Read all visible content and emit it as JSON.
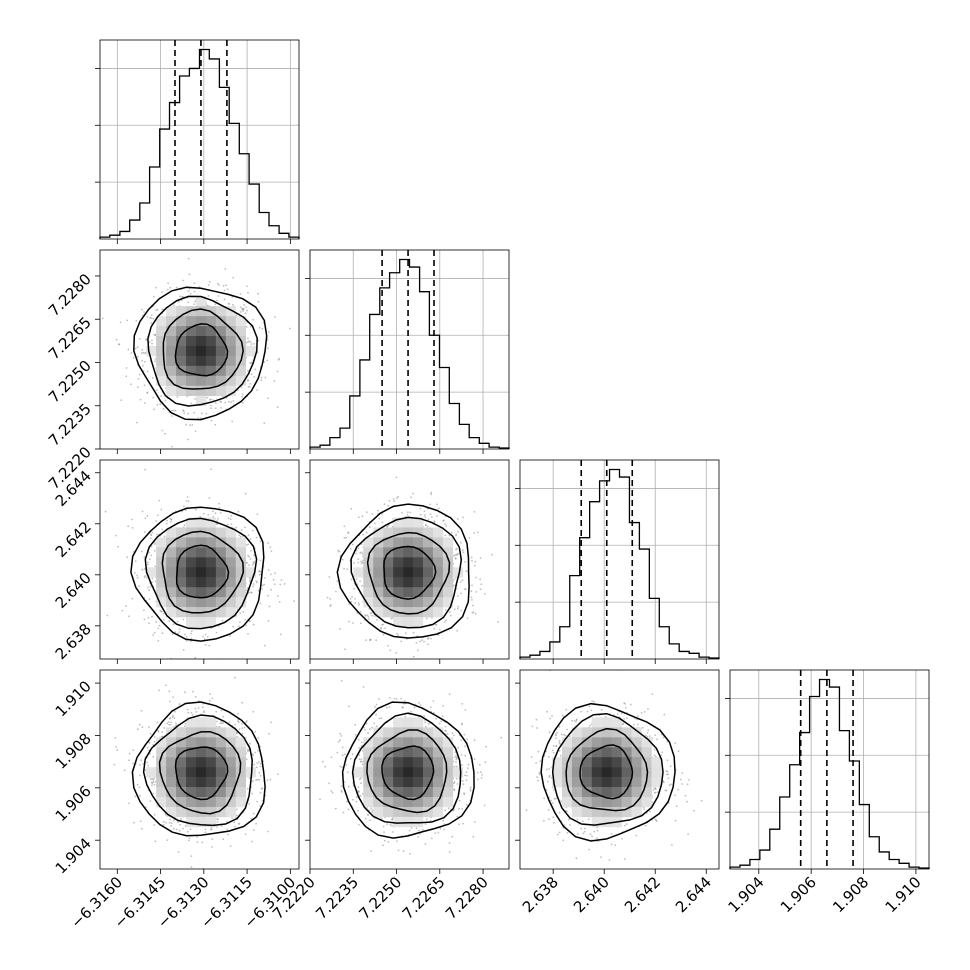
{
  "chart_data": {
    "type": "scatter",
    "kind": "corner plot",
    "grid": true,
    "parameters": [
      {
        "range": [
          -6.3166,
          -6.3097
        ],
        "ticks": [
          -6.316,
          -6.3145,
          -6.313,
          -6.3115,
          -6.31
        ],
        "tick_labels": [
          "−6.3160",
          "−6.3145",
          "−6.3130",
          "−6.3115",
          "−6.3100"
        ],
        "mean": -6.3131,
        "sd": 0.00085,
        "quantiles": [
          -6.314,
          -6.3131,
          -6.3122
        ]
      },
      {
        "range": [
          7.222,
          7.2289
        ],
        "ticks": [
          7.222,
          7.2235,
          7.225,
          7.2265,
          7.228
        ],
        "tick_labels": [
          "7.2220",
          "7.2235",
          "7.2250",
          "7.2265",
          "7.2280"
        ],
        "mean": 7.2254,
        "sd": 0.00085,
        "quantiles": [
          7.2245,
          7.2254,
          7.2263
        ]
      },
      {
        "range": [
          2.6367,
          2.6445
        ],
        "ticks": [
          2.638,
          2.64,
          2.642,
          2.644
        ],
        "tick_labels": [
          "2.638",
          "2.640",
          "2.642",
          "2.644"
        ],
        "mean": 2.6401,
        "sd": 0.00098,
        "quantiles": [
          2.6391,
          2.6401,
          2.6411
        ]
      },
      {
        "range": [
          1.9029,
          1.9105
        ],
        "ticks": [
          1.904,
          1.906,
          1.908,
          1.91
        ],
        "tick_labels": [
          "1.904",
          "1.906",
          "1.908",
          "1.910"
        ],
        "mean": 1.9066,
        "sd": 0.00095,
        "quantiles": [
          1.9056,
          1.9066,
          1.9076
        ]
      }
    ],
    "histograms": [
      {
        "bins": 20,
        "edges": [
          -6.3166,
          -6.31626,
          -6.31591,
          -6.31557,
          -6.31522,
          -6.31488,
          -6.31453,
          -6.31419,
          -6.31384,
          -6.3135,
          -6.31315,
          -6.31281,
          -6.31246,
          -6.31212,
          -6.31177,
          -6.31143,
          -6.31108,
          -6.31074,
          -6.31039,
          -6.31005,
          -6.3097
        ],
        "counts": [
          0.01,
          0.02,
          0.04,
          0.1,
          0.19,
          0.38,
          0.58,
          0.72,
          0.86,
          0.9,
          1.0,
          0.95,
          0.8,
          0.61,
          0.45,
          0.29,
          0.14,
          0.07,
          0.03,
          0.01
        ]
      },
      {
        "bins": 20,
        "edges": [
          7.222,
          7.22235,
          7.22269,
          7.22304,
          7.22338,
          7.22373,
          7.22407,
          7.22442,
          7.22476,
          7.22511,
          7.22545,
          7.2258,
          7.22614,
          7.22649,
          7.22683,
          7.22718,
          7.22752,
          7.22787,
          7.22821,
          7.22856,
          7.2289
        ],
        "counts": [
          0.01,
          0.02,
          0.06,
          0.11,
          0.28,
          0.47,
          0.71,
          0.85,
          0.93,
          1.0,
          0.96,
          0.83,
          0.6,
          0.43,
          0.24,
          0.13,
          0.06,
          0.03,
          0.01,
          0.005
        ]
      },
      {
        "bins": 20,
        "edges": [
          2.6367,
          2.63709,
          2.63748,
          2.63787,
          2.63826,
          2.63865,
          2.63904,
          2.63943,
          2.63982,
          2.64021,
          2.6406,
          2.64099,
          2.64138,
          2.64177,
          2.64216,
          2.64255,
          2.64294,
          2.64333,
          2.64372,
          2.64411,
          2.6445
        ],
        "counts": [
          0.01,
          0.02,
          0.04,
          0.09,
          0.17,
          0.44,
          0.64,
          0.83,
          0.94,
          1.0,
          0.96,
          0.72,
          0.58,
          0.32,
          0.17,
          0.08,
          0.04,
          0.03,
          0.01,
          0.005
        ]
      },
      {
        "bins": 20,
        "edges": [
          1.9029,
          1.90328,
          1.90366,
          1.90404,
          1.90442,
          1.9048,
          1.90518,
          1.90556,
          1.90594,
          1.90632,
          1.9067,
          1.90708,
          1.90746,
          1.90784,
          1.90822,
          1.9086,
          1.90898,
          1.90936,
          1.90974,
          1.91012,
          1.9105
        ],
        "counts": [
          0.01,
          0.02,
          0.05,
          0.1,
          0.21,
          0.38,
          0.55,
          0.72,
          0.91,
          1.0,
          0.96,
          0.73,
          0.57,
          0.34,
          0.17,
          0.09,
          0.05,
          0.03,
          0.01,
          0.005
        ]
      }
    ],
    "pairs": [
      {
        "x": 0,
        "y": 1
      },
      {
        "x": 0,
        "y": 2
      },
      {
        "x": 1,
        "y": 2
      },
      {
        "x": 0,
        "y": 3
      },
      {
        "x": 1,
        "y": 3
      },
      {
        "x": 2,
        "y": 3
      }
    ],
    "contour_levels_sigma": [
      0.5,
      1.0,
      1.5,
      2.0
    ]
  },
  "colors": {
    "background": "#ffffff",
    "axes": "#000000",
    "grid": "#b0b0b0",
    "samples": "#8a8a8a",
    "density_dark": "#1e1e1e"
  }
}
